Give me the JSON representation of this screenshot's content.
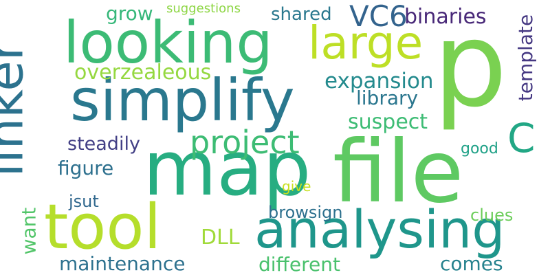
{
  "words": [
    {
      "id": "p",
      "text": "p",
      "color": "#7ad151"
    },
    {
      "id": "map",
      "text": "map",
      "color": "#27ad81"
    },
    {
      "id": "file",
      "text": "file",
      "color": "#5ec962"
    },
    {
      "id": "simplify",
      "text": "simplify",
      "color": "#2a788e"
    },
    {
      "id": "looking",
      "text": "looking",
      "color": "#3cbb75"
    },
    {
      "id": "tool",
      "text": "tool",
      "color": "#b5de2b"
    },
    {
      "id": "analysing",
      "text": "analysing",
      "color": "#1f968b"
    },
    {
      "id": "linker",
      "text": "linker",
      "color": "#2c728e"
    },
    {
      "id": "large",
      "text": "large",
      "color": "#bddf26"
    },
    {
      "id": "project",
      "text": "project",
      "color": "#3dbc74"
    },
    {
      "id": "C",
      "text": "C",
      "color": "#22a785"
    },
    {
      "id": "VC6",
      "text": "VC6",
      "color": "#33638d"
    },
    {
      "id": "binaries",
      "text": "binaries",
      "color": "#482878"
    },
    {
      "id": "overzealeous",
      "text": "overzealeous",
      "color": "#95d840"
    },
    {
      "id": "expansion",
      "text": "expansion",
      "color": "#238a8d"
    },
    {
      "id": "library",
      "text": "library",
      "color": "#2a768e"
    },
    {
      "id": "suspect",
      "text": "suspect",
      "color": "#3dbc74"
    },
    {
      "id": "template",
      "text": "template",
      "color": "#453882"
    },
    {
      "id": "steadily",
      "text": "steadily",
      "color": "#423f85"
    },
    {
      "id": "figure",
      "text": "figure",
      "color": "#2d708e"
    },
    {
      "id": "jsut",
      "text": "jsut",
      "color": "#31688e"
    },
    {
      "id": "want",
      "text": "want",
      "color": "#52c569"
    },
    {
      "id": "maintenance",
      "text": "maintenance",
      "color": "#2d718e"
    },
    {
      "id": "DLL",
      "text": "DLL",
      "color": "#a0da39"
    },
    {
      "id": "different",
      "text": "different",
      "color": "#4ac16d"
    },
    {
      "id": "comes",
      "text": "comes",
      "color": "#26828e"
    },
    {
      "id": "browsign",
      "text": "browsign",
      "color": "#2d708e"
    },
    {
      "id": "clues",
      "text": "clues",
      "color": "#6ccd5a"
    },
    {
      "id": "give",
      "text": "give",
      "color": "#c8e020"
    },
    {
      "id": "good",
      "text": "good",
      "color": "#1fa187"
    },
    {
      "id": "shared",
      "text": "shared",
      "color": "#2a788e"
    },
    {
      "id": "grow",
      "text": "grow",
      "color": "#35b779"
    },
    {
      "id": "suggestions",
      "text": "suggestions",
      "color": "#8ed645"
    }
  ]
}
